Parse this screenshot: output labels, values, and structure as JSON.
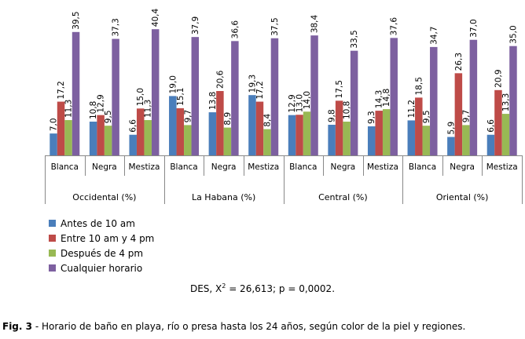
{
  "chart_data": {
    "type": "bar",
    "groups": [
      "Occidental (%)",
      "La Habana (%)",
      "Central (%)",
      "Oriental (%)"
    ],
    "categories": [
      "Blanca",
      "Negra",
      "Mestiza",
      "Blanca",
      "Negra",
      "Mestiza",
      "Blanca",
      "Negra",
      "Mestiza",
      "Blanca",
      "Negra",
      "Mestiza"
    ],
    "series": [
      {
        "name": "Antes de 10 am",
        "color": "#4A7EBB",
        "values": [
          7.0,
          10.8,
          6.6,
          19.0,
          13.8,
          19.3,
          12.9,
          9.8,
          9.3,
          11.2,
          5.9,
          6.6
        ],
        "labels": [
          "7,0",
          "10,8",
          "6,6",
          "19,0",
          "13,8",
          "19,3",
          "12,9",
          "9,8",
          "9,3",
          "11,2",
          "5,9",
          "6,6"
        ]
      },
      {
        "name": "Entre 10 am y 4 pm",
        "color": "#BE4B48",
        "values": [
          17.2,
          12.9,
          15.0,
          15.1,
          20.6,
          17.2,
          13.0,
          17.5,
          14.3,
          18.5,
          26.3,
          20.9
        ],
        "labels": [
          "17,2",
          "12,9",
          "15,0",
          "15,1",
          "20,6",
          "17,2",
          "13,0",
          "17,5",
          "14,3",
          "18,5",
          "26,3",
          "20,9"
        ]
      },
      {
        "name": "Después de 4 pm",
        "color": "#98B954",
        "values": [
          11.3,
          9.5,
          11.3,
          9.7,
          8.9,
          8.4,
          14.0,
          10.8,
          14.8,
          9.5,
          9.7,
          13.3
        ],
        "labels": [
          "11,3",
          "9,5",
          "11,3",
          "9,7",
          "8,9",
          "8,4",
          "14,0",
          "10,8",
          "14,8",
          "9,5",
          "9,7",
          "13,3"
        ]
      },
      {
        "name": "Cualquier horario",
        "color": "#7D60A0",
        "values": [
          39.5,
          37.3,
          40.4,
          37.9,
          36.6,
          37.5,
          38.4,
          33.5,
          37.6,
          34.7,
          37.0,
          35.0
        ],
        "labels": [
          "39,5",
          "37,3",
          "40,4",
          "37,9",
          "36,6",
          "37,5",
          "38,4",
          "33,5",
          "37,6",
          "34,7",
          "37,0",
          "35,0"
        ]
      }
    ]
  },
  "stat_prefix": "DES, X",
  "stat_sup": "2",
  "stat_suffix": " = 26,613; p = 0,0002.",
  "caption_bold": "Fig. 3",
  "caption_text": " - Horario de baño en playa, río o presa hasta los 24 años, según color de la piel y regiones."
}
